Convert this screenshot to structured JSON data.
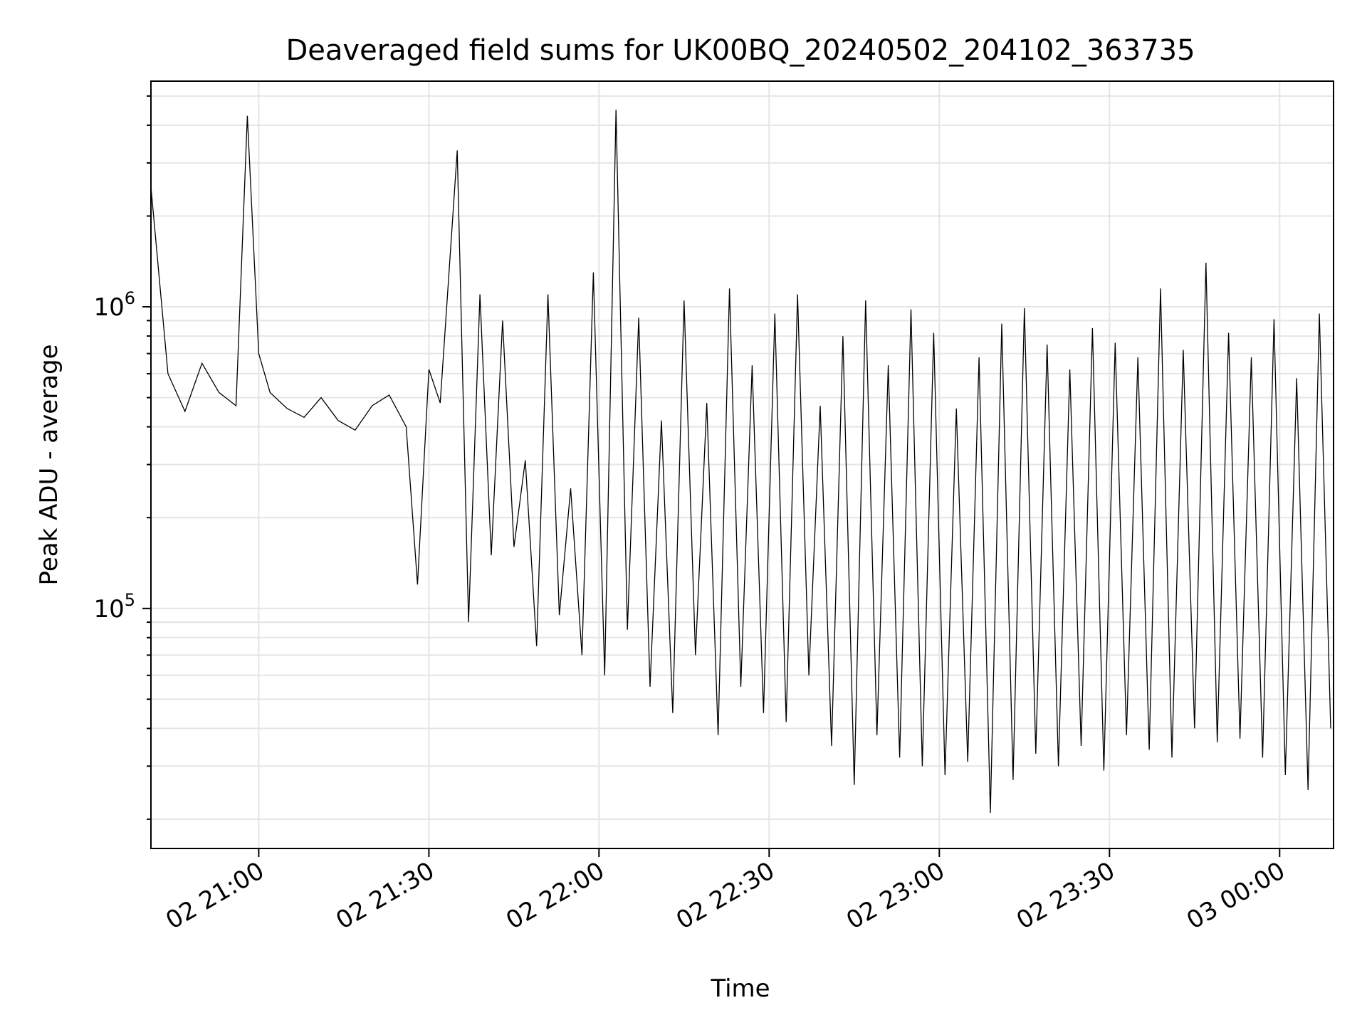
{
  "chart_data": {
    "type": "line",
    "title": "Deaveraged field sums for UK00BQ_20240502_204102_363735",
    "xlabel": "Time",
    "ylabel": "Peak ADU - average",
    "xlim": [
      "2024-05-02 20:41:00",
      "2024-05-03 00:09:30"
    ],
    "ylim": [
      16000,
      5600000
    ],
    "yscale": "log",
    "grid": true,
    "line_color": "#000000",
    "x_ticks": [
      {
        "t": "2024-05-02 21:00",
        "label": "02 21:00"
      },
      {
        "t": "2024-05-02 21:30",
        "label": "02 21:30"
      },
      {
        "t": "2024-05-02 22:00",
        "label": "02 22:00"
      },
      {
        "t": "2024-05-02 22:30",
        "label": "02 22:30"
      },
      {
        "t": "2024-05-02 23:00",
        "label": "02 23:00"
      },
      {
        "t": "2024-05-02 23:30",
        "label": "02 23:30"
      },
      {
        "t": "2024-05-03 00:00",
        "label": "03 00:00"
      }
    ],
    "y_ticks": [
      {
        "value": 100000,
        "base": "10",
        "exp": "5"
      },
      {
        "value": 1000000,
        "base": "10",
        "exp": "6"
      }
    ],
    "series": [
      {
        "x": [
          "2024-05-02 20:41",
          "2024-05-02 20:44",
          "2024-05-02 20:47",
          "2024-05-02 20:50",
          "2024-05-02 20:53",
          "2024-05-02 20:56",
          "2024-05-02 20:58",
          "2024-05-02 21:00",
          "2024-05-02 21:02",
          "2024-05-02 21:05",
          "2024-05-02 21:08",
          "2024-05-02 21:11",
          "2024-05-02 21:14",
          "2024-05-02 21:17",
          "2024-05-02 21:20",
          "2024-05-02 21:23",
          "2024-05-02 21:26",
          "2024-05-02 21:28",
          "2024-05-02 21:30",
          "2024-05-02 21:32",
          "2024-05-02 21:35",
          "2024-05-02 21:37",
          "2024-05-02 21:39",
          "2024-05-02 21:41",
          "2024-05-02 21:43",
          "2024-05-02 21:45",
          "2024-05-02 21:47",
          "2024-05-02 21:49",
          "2024-05-02 21:51",
          "2024-05-02 21:53",
          "2024-05-02 21:55",
          "2024-05-02 21:57",
          "2024-05-02 21:59",
          "2024-05-02 22:01",
          "2024-05-02 22:03",
          "2024-05-02 22:05",
          "2024-05-02 22:07",
          "2024-05-02 22:09",
          "2024-05-02 22:11",
          "2024-05-02 22:13",
          "2024-05-02 22:15",
          "2024-05-02 22:17",
          "2024-05-02 22:19",
          "2024-05-02 22:21",
          "2024-05-02 22:23",
          "2024-05-02 22:25",
          "2024-05-02 22:27",
          "2024-05-02 22:29",
          "2024-05-02 22:31",
          "2024-05-02 22:33",
          "2024-05-02 22:35",
          "2024-05-02 22:37",
          "2024-05-02 22:39",
          "2024-05-02 22:41",
          "2024-05-02 22:43",
          "2024-05-02 22:45",
          "2024-05-02 22:47",
          "2024-05-02 22:49",
          "2024-05-02 22:51",
          "2024-05-02 22:53",
          "2024-05-02 22:55",
          "2024-05-02 22:57",
          "2024-05-02 22:59",
          "2024-05-02 23:01",
          "2024-05-02 23:03",
          "2024-05-02 23:05",
          "2024-05-02 23:07",
          "2024-05-02 23:09",
          "2024-05-02 23:11",
          "2024-05-02 23:13",
          "2024-05-02 23:15",
          "2024-05-02 23:17",
          "2024-05-02 23:19",
          "2024-05-02 23:21",
          "2024-05-02 23:23",
          "2024-05-02 23:25",
          "2024-05-02 23:27",
          "2024-05-02 23:29",
          "2024-05-02 23:31",
          "2024-05-02 23:33",
          "2024-05-02 23:35",
          "2024-05-02 23:37",
          "2024-05-02 23:39",
          "2024-05-02 23:41",
          "2024-05-02 23:43",
          "2024-05-02 23:45",
          "2024-05-02 23:47",
          "2024-05-02 23:49",
          "2024-05-02 23:51",
          "2024-05-02 23:53",
          "2024-05-02 23:55",
          "2024-05-02 23:57",
          "2024-05-02 23:59",
          "2024-05-03 00:01",
          "2024-05-03 00:03",
          "2024-05-03 00:05",
          "2024-05-03 00:07",
          "2024-05-03 00:09"
        ],
        "y": [
          2500000,
          600000,
          450000,
          650000,
          520000,
          470000,
          4300000,
          700000,
          520000,
          460000,
          430000,
          500000,
          420000,
          390000,
          470000,
          510000,
          400000,
          120000,
          620000,
          480000,
          3300000,
          90000,
          1100000,
          150000,
          900000,
          160000,
          310000,
          75000,
          1100000,
          95000,
          250000,
          70000,
          1300000,
          60000,
          4500000,
          85000,
          920000,
          55000,
          420000,
          45000,
          1050000,
          70000,
          480000,
          38000,
          1150000,
          55000,
          640000,
          45000,
          950000,
          42000,
          1100000,
          60000,
          470000,
          35000,
          800000,
          26000,
          1050000,
          38000,
          640000,
          32000,
          980000,
          30000,
          820000,
          28000,
          460000,
          31000,
          680000,
          21000,
          880000,
          27000,
          990000,
          33000,
          750000,
          30000,
          620000,
          35000,
          850000,
          29000,
          760000,
          38000,
          680000,
          34000,
          1150000,
          32000,
          720000,
          40000,
          1400000,
          36000,
          820000,
          37000,
          680000,
          32000,
          910000,
          28000,
          580000,
          25000,
          950000,
          40000
        ]
      }
    ]
  }
}
